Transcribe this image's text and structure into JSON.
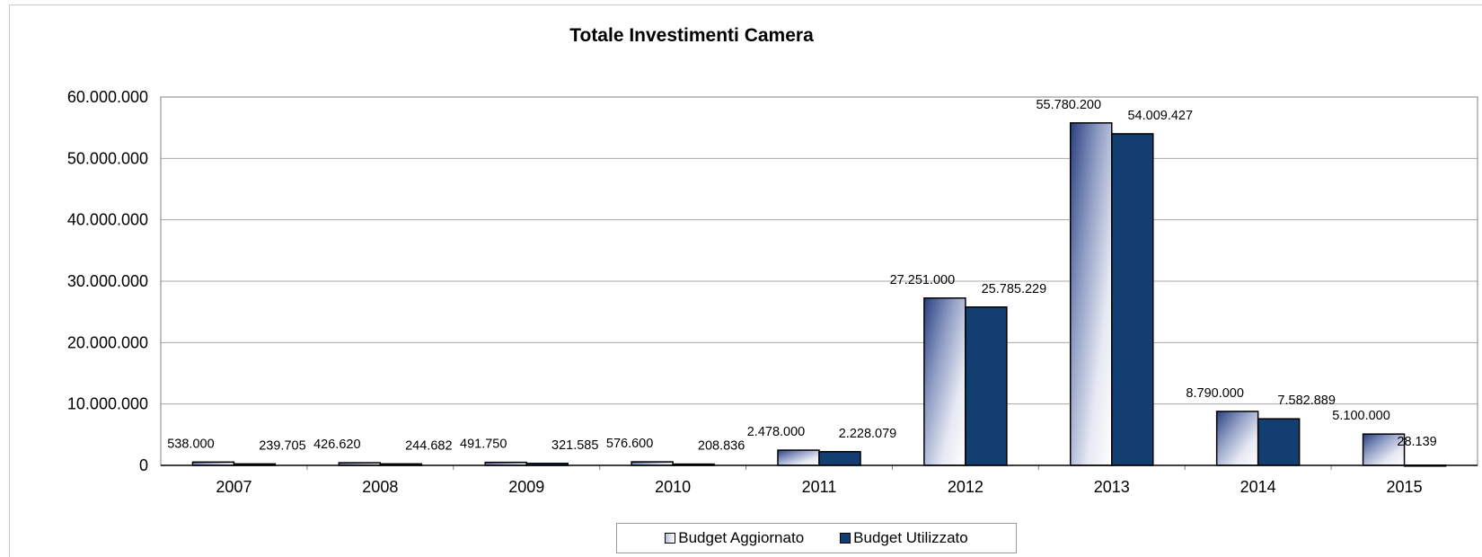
{
  "chart_data": {
    "type": "bar",
    "title": "Totale Investimenti Camera",
    "xlabel": "",
    "ylabel": "",
    "categories": [
      "2007",
      "2008",
      "2009",
      "2010",
      "2011",
      "2012",
      "2013",
      "2014",
      "2015"
    ],
    "series": [
      {
        "name": "Budget Aggiornato",
        "values": [
          538000,
          426620,
          491750,
          576600,
          2478000,
          27251000,
          55780200,
          8790000,
          5100000
        ],
        "labels": [
          "538.000",
          "426.620",
          "491.750",
          "576.600",
          "2.478.000",
          "27.251.000",
          "55.780.200",
          "8.790.000",
          "5.100.000"
        ],
        "style": "gradient"
      },
      {
        "name": "Budget Utilizzato",
        "values": [
          239705,
          244682,
          321585,
          208836,
          2228079,
          25785229,
          54009427,
          7582889,
          28139
        ],
        "labels": [
          "239.705",
          "244.682",
          "321.585",
          "208.836",
          "2.228.079",
          "25.785.229",
          "54.009.427",
          "7.582.889",
          "28.139"
        ],
        "color": "#123e72"
      }
    ],
    "ylim": [
      0,
      60000000
    ],
    "yticks": [
      0,
      10000000,
      20000000,
      30000000,
      40000000,
      50000000,
      60000000
    ],
    "ytick_labels": [
      "0",
      "10.000.000",
      "20.000.000",
      "30.000.000",
      "40.000.000",
      "50.000.000",
      "60.000.000"
    ],
    "grid": true,
    "legend_position": "bottom"
  }
}
